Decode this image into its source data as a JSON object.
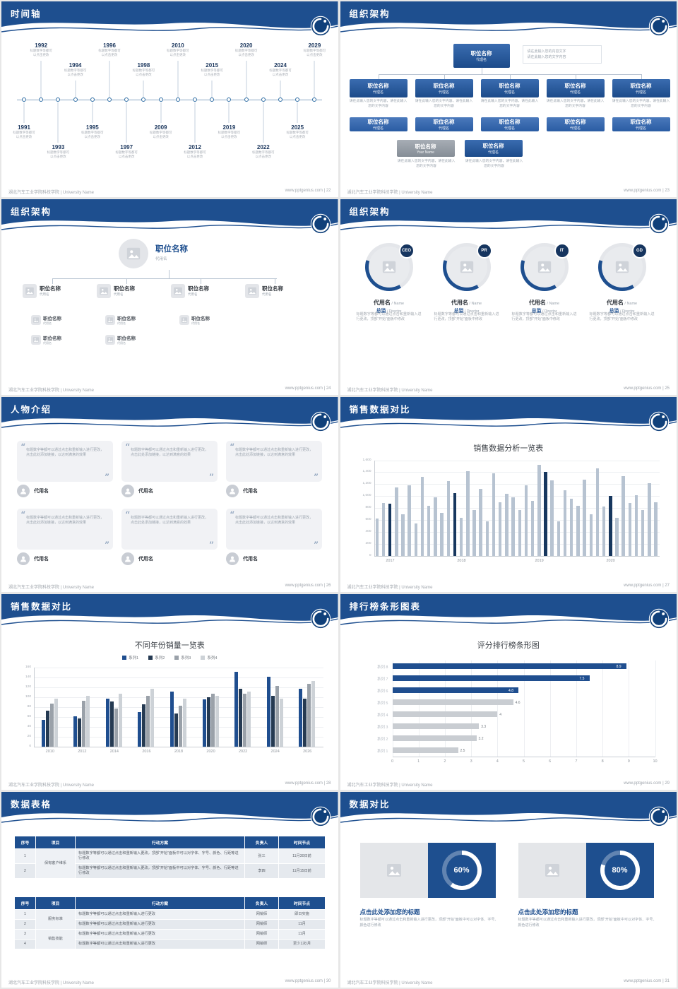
{
  "colors": {
    "primary": "#1e4f8f",
    "navy": "#17375e",
    "bar_gray": "#b7c3d1",
    "light_gray": "#c9cdd2"
  },
  "footer": {
    "left": "湖北汽车工业学院科技学院 | University Name"
  },
  "slides": {
    "timeline": {
      "title": "时间轴",
      "footer_right": "www.pptgenius.com | 22",
      "caption1": "标题数字等都可",
      "caption2": "以点击更改",
      "items": [
        {
          "year": "1991",
          "side": "bottom",
          "tier": 0
        },
        {
          "year": "1992",
          "side": "top",
          "tier": 0
        },
        {
          "year": "1993",
          "side": "bottom",
          "tier": 1
        },
        {
          "year": "1994",
          "side": "top",
          "tier": 1
        },
        {
          "year": "1995",
          "side": "bottom",
          "tier": 0
        },
        {
          "year": "1996",
          "side": "top",
          "tier": 0
        },
        {
          "year": "1997",
          "side": "bottom",
          "tier": 1
        },
        {
          "year": "1998",
          "side": "top",
          "tier": 1
        },
        {
          "year": "2009",
          "side": "bottom",
          "tier": 0
        },
        {
          "year": "2010",
          "side": "top",
          "tier": 0
        },
        {
          "year": "2012",
          "side": "bottom",
          "tier": 1
        },
        {
          "year": "2015",
          "side": "top",
          "tier": 1
        },
        {
          "year": "2019",
          "side": "bottom",
          "tier": 0
        },
        {
          "year": "2020",
          "side": "top",
          "tier": 0
        },
        {
          "year": "2022",
          "side": "bottom",
          "tier": 1
        },
        {
          "year": "2024",
          "side": "top",
          "tier": 1
        },
        {
          "year": "2025",
          "side": "bottom",
          "tier": 0
        },
        {
          "year": "2029",
          "side": "top",
          "tier": 0
        }
      ]
    },
    "org_boxes": {
      "title": "组织架构",
      "footer_right": "www.pptgenius.com | 23",
      "top": {
        "title": "职位名称",
        "sub": "代理名"
      },
      "note": [
        "请在此输入您的内容文字",
        "请在此输入您的文字内容"
      ],
      "col": {
        "title": "职位名称",
        "sub": "代理名",
        "desc": "请在此输入您的文字内容，请在此输入您的文字内容"
      },
      "bottom": [
        {
          "title": "职位名称",
          "sub": "Your Name",
          "style": "gray",
          "desc": "请在此输入您的文字内容，请在此输入您的文字内容"
        },
        {
          "title": "职位名称",
          "sub": "代理名",
          "style": "blue",
          "desc": "请在此输入您的文字内容，请在此输入您的文字内容"
        }
      ]
    },
    "org_tree": {
      "title": "组织架构",
      "footer_right": "www.pptgenius.com | 24",
      "root": {
        "title": "职位名称",
        "sub": "代用名"
      },
      "nodes": [
        {
          "title": "职位名称",
          "sub": "代用名"
        },
        {
          "title": "职位名称",
          "sub": "代用名"
        },
        {
          "title": "职位名称",
          "sub": "代用名"
        },
        {
          "title": "职位名称",
          "sub": "代用名"
        }
      ],
      "subs": [
        {
          "col": 0,
          "row": 0,
          "title": "职位名称",
          "sub": "代用名"
        },
        {
          "col": 0,
          "row": 1,
          "title": "职位名称",
          "sub": "代用名"
        },
        {
          "col": 1,
          "row": 0,
          "title": "职位名称",
          "sub": "代用名"
        },
        {
          "col": 1,
          "row": 1,
          "title": "职位名称",
          "sub": "代用名"
        },
        {
          "col": 2,
          "row": 0,
          "title": "职位名称",
          "sub": "代用名"
        }
      ]
    },
    "org_profiles": {
      "title": "组织架构",
      "footer_right": "www.pptgenius.com | 25",
      "profiles": [
        {
          "badge": "CEO",
          "name": "代用名",
          "name_en": " / Name",
          "role": "总监",
          "role_en": " / Director",
          "desc": "标题数字等都可以通过点击和重新输入进行更改，顶部“开始”面板中修改"
        },
        {
          "badge": "PR",
          "name": "代用名",
          "name_en": " / Name",
          "role": "总监",
          "role_en": " / Director",
          "desc": "标题数字等都可以通过点击和重新输入进行更改，顶部“开始”面板中修改"
        },
        {
          "badge": "IT",
          "name": "代用名",
          "name_en": " / Name",
          "role": "总监",
          "role_en": " / Director",
          "desc": "标题数字等都可以通过点击和重新输入进行更改，顶部“开始”面板中修改"
        },
        {
          "badge": "GD",
          "name": "代用名",
          "name_en": " / Name",
          "role": "总监",
          "role_en": " / Director",
          "desc": "标题数字等都可以通过点击和重新输入进行更改，顶部“开始”面板中修改"
        }
      ]
    },
    "people": {
      "title": "人物介绍",
      "footer_right": "www.pptgenius.com | 26",
      "quote": "标题数字等都可以通过点击和重新输入进行更改，点击此处添加链接，以达到满意的效果",
      "name": "代用名",
      "count": 6
    },
    "sales_trend": {
      "title": "销售数据对比",
      "footer_right": "www.pptgenius.com | 27",
      "chart_title": "销售数据分析一览表"
    },
    "sales_years": {
      "title": "销售数据对比",
      "footer_right": "www.pptgenius.com | 28",
      "chart_title": "不同年份销量一览表"
    },
    "ranking": {
      "title": "排行榜条形图表",
      "footer_right": "www.pptgenius.com | 29",
      "chart_title": "评分排行榜条形图"
    },
    "tables": {
      "title": "数据表格",
      "footer_right": "www.pptgenius.com | 30",
      "table1": {
        "headers": [
          "序号",
          "项目",
          "行动方案",
          "负责人",
          "时间节点"
        ],
        "rows": [
          {
            "num": "1",
            "project": "保有客户维系",
            "span": 2,
            "action": "标题数字等都可以通过点击和重新输入更改，顶部“开始”面板中可以对字体、字号、颜色、行距等进行修改",
            "owner": "张三",
            "time": "11月30日前"
          },
          {
            "num": "2",
            "action": "标题数字等都可以通过点击和重新输入更改，顶部“开始”面板中可以对字体、字号、颜色、行距等进行修改",
            "owner": "李四",
            "time": "11月15日前"
          }
        ]
      },
      "table2": {
        "headers": [
          "序号",
          "项目",
          "行动方案",
          "负责人",
          "时间节点"
        ],
        "rows": [
          {
            "num": "1",
            "project": "服务标准",
            "span": 2,
            "action": "标题数字等都可以通过点击和重新输入进行更改",
            "owner": "网销师",
            "time": "即日实施"
          },
          {
            "num": "2",
            "action": "标题数字等都可以通过点击和重新输入进行更改",
            "owner": "网销师",
            "time": "11月"
          },
          {
            "num": "3",
            "project": "销售技能",
            "span": 2,
            "action": "标题数字等都可以通过点击和重新输入进行更改",
            "owner": "网销师",
            "time": "11月"
          },
          {
            "num": "4",
            "action": "标题数字等都可以通过点击和重新输入进行更改",
            "owner": "网销师",
            "time": "至少1次/月"
          }
        ]
      }
    },
    "compare": {
      "title": "数据对比",
      "footer_right": "www.pptgenius.com | 31",
      "panels": [
        {
          "percent": 60,
          "label": "60%",
          "heading": "点击此处添加您的标题",
          "body": "标题数字等都可以通过点击和重新输入进行更改，顶部“开始”面板中可以对字体、字号、颜色进行修改"
        },
        {
          "percent": 80,
          "label": "80%",
          "heading": "点击此处添加您的标题",
          "body": "标题数字等都可以通过点击和重新输入进行更改，顶部“开始”面板中可以对字体、字号、颜色进行修改"
        }
      ]
    }
  },
  "chart_data": [
    {
      "id": "sales_trend",
      "type": "bar",
      "title": "销售数据分析一览表",
      "x_labels": [
        "2017",
        "2018",
        "2019",
        "2020"
      ],
      "x_label_indices": [
        2,
        13,
        25,
        36
      ],
      "y_ticks": [
        "1,600",
        "1,400",
        "1,200",
        "1,000",
        "800",
        "600",
        "400",
        "200",
        "0"
      ],
      "ymax": 1600,
      "values": [
        620,
        880,
        870,
        1150,
        690,
        1180,
        540,
        1320,
        840,
        980,
        720,
        1250,
        1050,
        640,
        1420,
        760,
        1120,
        580,
        1380,
        900,
        1040,
        980,
        760,
        1180,
        920,
        1520,
        1400,
        1260,
        580,
        1100,
        960,
        840,
        1280,
        700,
        1460,
        820,
        1000,
        640,
        1340,
        880,
        1020,
        760,
        1220,
        900
      ],
      "highlight_indices": [
        2,
        12,
        26,
        36
      ],
      "colors": {
        "bar": "#b7c3d1",
        "highlight": "#17375e"
      },
      "grid": true,
      "legend": false
    },
    {
      "id": "sales_years",
      "type": "grouped-bar",
      "title": "不同年份销量一览表",
      "categories": [
        "2010",
        "2012",
        "2014",
        "2016",
        "2018",
        "2020",
        "2022",
        "2024",
        "2026"
      ],
      "y_ticks": [
        "160",
        "140",
        "120",
        "100",
        "80",
        "60",
        "40",
        "20",
        "0"
      ],
      "ymax": 160,
      "series": [
        {
          "name": "系列1",
          "color": "#1f4e8f",
          "values": [
            55,
            62,
            98,
            70,
            112,
            96,
            152,
            142,
            118
          ]
        },
        {
          "name": "系列2",
          "color": "#253a52",
          "values": [
            74,
            58,
            92,
            86,
            68,
            100,
            118,
            104,
            98
          ]
        },
        {
          "name": "系列3",
          "color": "#9aa1a9",
          "values": [
            88,
            94,
            78,
            104,
            84,
            108,
            108,
            124,
            128
          ]
        },
        {
          "name": "系列4",
          "color": "#cdd2d7",
          "values": [
            98,
            104,
            108,
            118,
            98,
            104,
            112,
            98,
            134
          ]
        }
      ],
      "grid": true,
      "legend_position": "top"
    },
    {
      "id": "ranking",
      "type": "hbar",
      "title": "评分排行榜条形图",
      "labels": [
        "系列 8",
        "系列 7",
        "系列 6",
        "系列 5",
        "系列 4",
        "系列 3",
        "系列 2",
        "系列 1"
      ],
      "values": [
        8.9,
        7.5,
        4.8,
        4.6,
        4,
        3.3,
        3.2,
        2.5
      ],
      "x_ticks": [
        "0",
        "1",
        "2",
        "3",
        "4",
        "5",
        "6",
        "7",
        "8",
        "9",
        "10"
      ],
      "xmax": 10,
      "blue_count": 3,
      "colors": {
        "blue": "#1f4e8f",
        "gray": "#c9cdd2"
      },
      "grid": true
    },
    {
      "id": "donuts",
      "type": "pie",
      "labels": [
        "60%",
        "80%"
      ],
      "values": [
        60,
        80
      ]
    }
  ]
}
